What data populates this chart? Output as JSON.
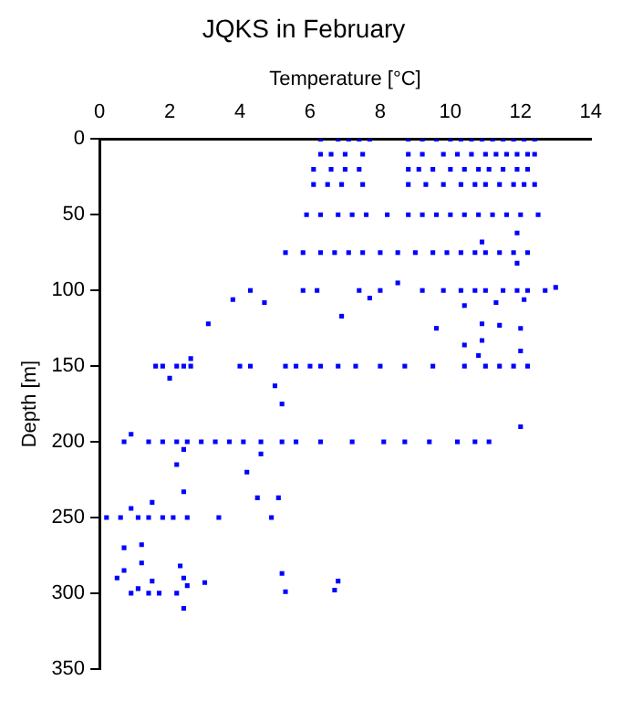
{
  "chart_data": {
    "type": "scatter",
    "title": "JQKS in February",
    "xlabel": "Temperature [°C]",
    "ylabel": "Depth [m]",
    "xlim": [
      0,
      14
    ],
    "xticks": [
      0,
      2,
      4,
      6,
      8,
      10,
      12,
      14
    ],
    "ylim": [
      350,
      0
    ],
    "yticks": [
      0,
      50,
      100,
      150,
      200,
      250,
      300,
      350
    ],
    "grid": false,
    "legend": false,
    "marker": "square",
    "series": [
      {
        "color": "#0000ff",
        "x": [
          6.3,
          6.8,
          7.1,
          7.4,
          7.7,
          8.8,
          9.2,
          9.6,
          10.0,
          10.3,
          10.6,
          10.9,
          11.2,
          11.5,
          11.8,
          12.1,
          12.4,
          6.3,
          6.6,
          7.0,
          7.5,
          8.8,
          9.2,
          9.8,
          10.2,
          10.6,
          11.0,
          11.3,
          11.6,
          11.9,
          12.2,
          12.4,
          6.1,
          6.6,
          7.0,
          7.4,
          8.8,
          9.1,
          9.5,
          10.0,
          10.4,
          10.8,
          11.1,
          11.5,
          11.9,
          12.2,
          6.1,
          6.5,
          6.9,
          7.5,
          8.8,
          9.3,
          9.8,
          10.3,
          10.7,
          11.0,
          11.4,
          11.8,
          12.1,
          12.4,
          5.9,
          6.3,
          6.8,
          7.2,
          7.6,
          8.2,
          8.8,
          9.2,
          9.6,
          10.0,
          10.4,
          10.8,
          11.2,
          11.6,
          12.0,
          12.5,
          5.3,
          5.8,
          6.3,
          6.7,
          7.1,
          7.5,
          8.0,
          8.5,
          9.0,
          9.5,
          9.9,
          10.3,
          10.7,
          11.0,
          11.4,
          11.8,
          12.2,
          10.9,
          11.9,
          11.9,
          4.3,
          3.8,
          4.7,
          5.8,
          6.2,
          7.4,
          7.7,
          8.0,
          8.5,
          9.2,
          9.8,
          10.3,
          10.7,
          11.0,
          11.5,
          11.9,
          12.2,
          12.7,
          13.0,
          12.1,
          10.4,
          11.3,
          3.1,
          6.9,
          9.6,
          10.9,
          11.4,
          12.0,
          10.9,
          1.6,
          1.8,
          2.2,
          2.4,
          2.6,
          4.0,
          4.3,
          5.3,
          5.6,
          6.0,
          6.3,
          6.8,
          7.3,
          8.0,
          8.7,
          9.5,
          10.4,
          11.0,
          11.4,
          11.8,
          12.2,
          2.6,
          12.0,
          10.8,
          10.4,
          2.0,
          5.0,
          5.2,
          12.0,
          0.7,
          1.4,
          1.8,
          2.2,
          2.5,
          2.9,
          3.3,
          3.7,
          4.1,
          4.6,
          5.2,
          5.6,
          6.3,
          7.2,
          8.1,
          8.7,
          9.4,
          10.2,
          10.7,
          11.1,
          0.9,
          4.6,
          2.4,
          2.2,
          4.2,
          2.4,
          0.9,
          1.5,
          4.5,
          5.1,
          0.2,
          0.6,
          1.1,
          1.4,
          1.8,
          2.1,
          2.5,
          3.4,
          4.9,
          0.7,
          1.2,
          1.2,
          2.3,
          0.5,
          0.7,
          0.9,
          1.1,
          1.4,
          1.7,
          1.5,
          2.4,
          2.5,
          2.2,
          3.0,
          5.2,
          2.4,
          6.8,
          6.7,
          5.3
        ],
        "values": [
          0,
          0,
          0,
          0,
          0,
          0,
          0,
          0,
          0,
          0,
          0,
          0,
          0,
          0,
          0,
          0,
          0,
          10,
          10,
          10,
          10,
          10,
          10,
          10,
          10,
          10,
          10,
          10,
          10,
          10,
          10,
          10,
          20,
          20,
          20,
          20,
          20,
          20,
          20,
          20,
          20,
          20,
          20,
          20,
          20,
          20,
          30,
          30,
          30,
          30,
          30,
          30,
          30,
          30,
          30,
          30,
          30,
          30,
          30,
          30,
          50,
          50,
          50,
          50,
          50,
          50,
          50,
          50,
          50,
          50,
          50,
          50,
          50,
          50,
          50,
          50,
          75,
          75,
          75,
          75,
          75,
          75,
          75,
          75,
          75,
          75,
          75,
          75,
          75,
          75,
          75,
          75,
          75,
          68,
          62,
          82,
          100,
          106,
          108,
          100,
          100,
          100,
          105,
          100,
          95,
          100,
          100,
          100,
          100,
          100,
          100,
          100,
          100,
          100,
          98,
          106,
          110,
          108,
          122,
          117,
          125,
          122,
          123,
          125,
          133,
          150,
          150,
          150,
          150,
          150,
          150,
          150,
          150,
          150,
          150,
          150,
          150,
          150,
          150,
          150,
          150,
          150,
          150,
          150,
          150,
          150,
          145,
          140,
          143,
          136,
          158,
          163,
          175,
          190,
          200,
          200,
          200,
          200,
          200,
          200,
          200,
          200,
          200,
          200,
          200,
          200,
          200,
          200,
          200,
          200,
          200,
          200,
          200,
          200,
          195,
          208,
          205,
          215,
          220,
          233,
          244,
          240,
          237,
          237,
          250,
          250,
          250,
          250,
          250,
          250,
          250,
          250,
          250,
          270,
          268,
          280,
          282,
          290,
          285,
          300,
          297,
          300,
          300,
          292,
          290,
          295,
          300,
          293,
          287,
          310,
          292,
          298,
          299
        ]
      }
    ]
  }
}
